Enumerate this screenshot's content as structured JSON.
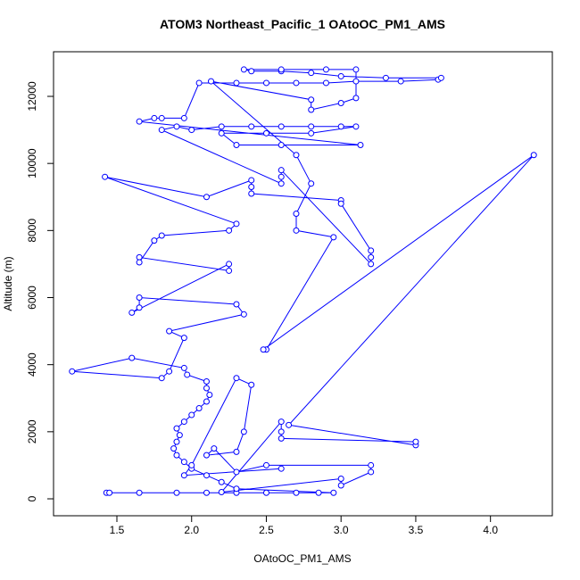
{
  "chart_data": {
    "type": "line",
    "title": "ATOM3 Northeast_Pacific_1 OAtoOC_PM1_AMS",
    "xlabel": "OAtoOC_PM1_AMS",
    "ylabel": "Altitude (m)",
    "color": "#0000ff",
    "markers": true,
    "xlim": [
      1.076,
      4.414
    ],
    "ylim": [
      -505,
      13330
    ],
    "xticks": [
      {
        "value": 1.5,
        "label": "1.5"
      },
      {
        "value": 2,
        "label": "2.0"
      },
      {
        "value": 2.5,
        "label": "2.5"
      },
      {
        "value": 3,
        "label": "3.0"
      },
      {
        "value": 3.5,
        "label": "3.5"
      },
      {
        "value": 4,
        "label": "4.0"
      }
    ],
    "yticks": [
      0,
      2000,
      4000,
      6000,
      8000,
      10000,
      12000
    ],
    "x": [
      1.43,
      1.45,
      1.65,
      1.9,
      2.1,
      2.3,
      2.5,
      2.7,
      2.85,
      2.95,
      2.3,
      2.2,
      2.1,
      2.0,
      1.95,
      1.9,
      1.88,
      1.9,
      1.92,
      1.9,
      1.95,
      2.0,
      2.05,
      2.1,
      2.12,
      2.1,
      2.1,
      1.97,
      1.95,
      1.6,
      1.2,
      1.8,
      1.85,
      1.95,
      1.85,
      2.35,
      2.3,
      1.65,
      1.65,
      1.6,
      2.25,
      2.25,
      1.65,
      1.65,
      1.75,
      1.8,
      2.25,
      2.3,
      1.42,
      2.1,
      2.4,
      2.4,
      2.4,
      3.0,
      3.0,
      3.2,
      3.2,
      3.2,
      2.6,
      2.6,
      2.6,
      1.8,
      1.9,
      2.0,
      2.2,
      2.4,
      2.6,
      2.8,
      3.0,
      3.1,
      2.8,
      2.5,
      2.2,
      2.3,
      2.6,
      3.13,
      1.65,
      1.75,
      1.8,
      1.95,
      2.05,
      2.3,
      2.5,
      2.7,
      2.9,
      3.1,
      3.4,
      3.65,
      3.67,
      3.3,
      3.0,
      2.8,
      2.6,
      2.4,
      2.35,
      2.6,
      2.9,
      3.1,
      3.1,
      3.0,
      2.8,
      2.8,
      2.13,
      2.7,
      2.8,
      2.7,
      2.7,
      2.95,
      2.5,
      2.48,
      4.29,
      2.65,
      3.5,
      3.5,
      2.6,
      2.6,
      2.6,
      2.2,
      3.0,
      3.0,
      3.2,
      3.2,
      2.5,
      2.3,
      2.15,
      2.1,
      2.3,
      2.35,
      2.4,
      2.3,
      2.0,
      1.95,
      2.6
    ],
    "values": [
      180,
      180,
      180,
      180,
      180,
      180,
      180,
      180,
      180,
      180,
      300,
      500,
      700,
      900,
      1100,
      1300,
      1500,
      1700,
      1900,
      2100,
      2300,
      2500,
      2700,
      2900,
      3100,
      3300,
      3500,
      3700,
      3900,
      4200,
      3800,
      3600,
      3800,
      4800,
      5000,
      5500,
      5800,
      6000,
      5700,
      5550,
      7000,
      6800,
      7200,
      7050,
      7700,
      7850,
      8000,
      8200,
      9600,
      9000,
      9500,
      9300,
      9100,
      8900,
      8800,
      7400,
      7200,
      7000,
      9800,
      9600,
      9400,
      11000,
      11100,
      11000,
      11100,
      11100,
      11100,
      11100,
      11100,
      11100,
      10900,
      10900,
      10900,
      10550,
      10550,
      10550,
      11250,
      11350,
      11350,
      11350,
      12400,
      12400,
      12400,
      12400,
      12400,
      12450,
      12450,
      12500,
      12550,
      12550,
      12600,
      12700,
      12750,
      12750,
      12800,
      12800,
      12800,
      12800,
      11950,
      11800,
      11600,
      11900,
      12450,
      10250,
      9400,
      8500,
      8000,
      7800,
      4450,
      4450,
      10250,
      2200,
      1600,
      1700,
      1800,
      2000,
      2300,
      200,
      600,
      400,
      800,
      1000,
      1000,
      800,
      1500,
      1300,
      1400,
      2000,
      3400,
      3600,
      1000,
      700,
      900
    ]
  }
}
